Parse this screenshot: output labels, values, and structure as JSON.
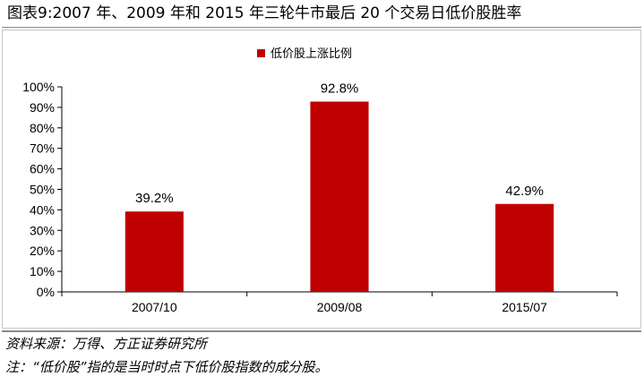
{
  "figure": {
    "title": "图表9:2007 年、2009 年和 2015 年三轮牛市最后 20 个交易日低价股胜率",
    "source": "资料来源：万得、方正证券研究所",
    "note": "注：“低价股”指的是当时时点下低价股指数的成分股。"
  },
  "colors": {
    "bar": "#c00000",
    "axis": "#000000"
  },
  "chart_data": {
    "type": "bar",
    "categories": [
      "2007/10",
      "2009/08",
      "2015/07"
    ],
    "series": [
      {
        "name": "低价股上涨比例",
        "values": [
          39.2,
          92.8,
          42.9
        ],
        "labels": [
          "39.2%",
          "92.8%",
          "42.9%"
        ]
      }
    ],
    "ylim": [
      0,
      100
    ],
    "yticks": [
      0,
      10,
      20,
      30,
      40,
      50,
      60,
      70,
      80,
      90,
      100
    ],
    "ytick_labels": [
      "0%",
      "10%",
      "20%",
      "30%",
      "40%",
      "50%",
      "60%",
      "70%",
      "80%",
      "90%",
      "100%"
    ],
    "grid": false,
    "legend": "top-center"
  }
}
